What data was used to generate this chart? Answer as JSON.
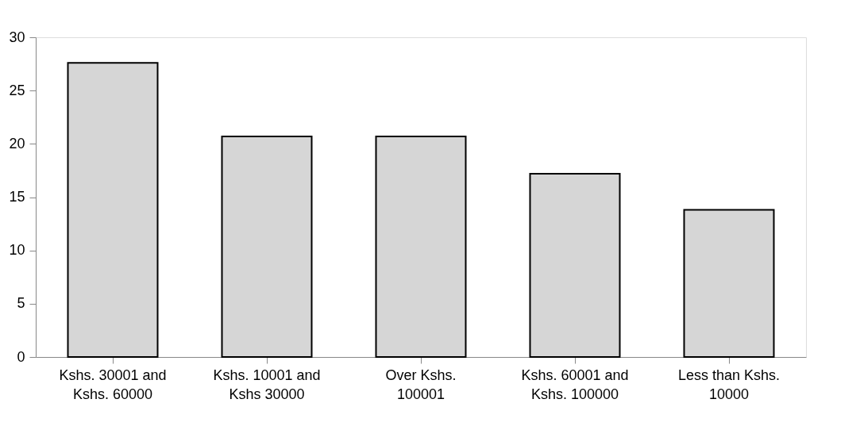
{
  "chart_data": {
    "type": "bar",
    "categories": [
      "Kshs. 30001 and Kshs. 60000",
      "Kshs. 10001 and Kshs 30000",
      "Over Kshs. 100001",
      "Kshs. 60001 and Kshs. 100000",
      "Less than Kshs. 10000"
    ],
    "values": [
      27.6,
      20.7,
      20.7,
      17.2,
      13.8
    ],
    "color": "#d6d6d6",
    "ylim": [
      0,
      30
    ],
    "yticks": [
      0,
      5,
      10,
      15,
      20,
      25,
      30
    ],
    "grid": false
  }
}
